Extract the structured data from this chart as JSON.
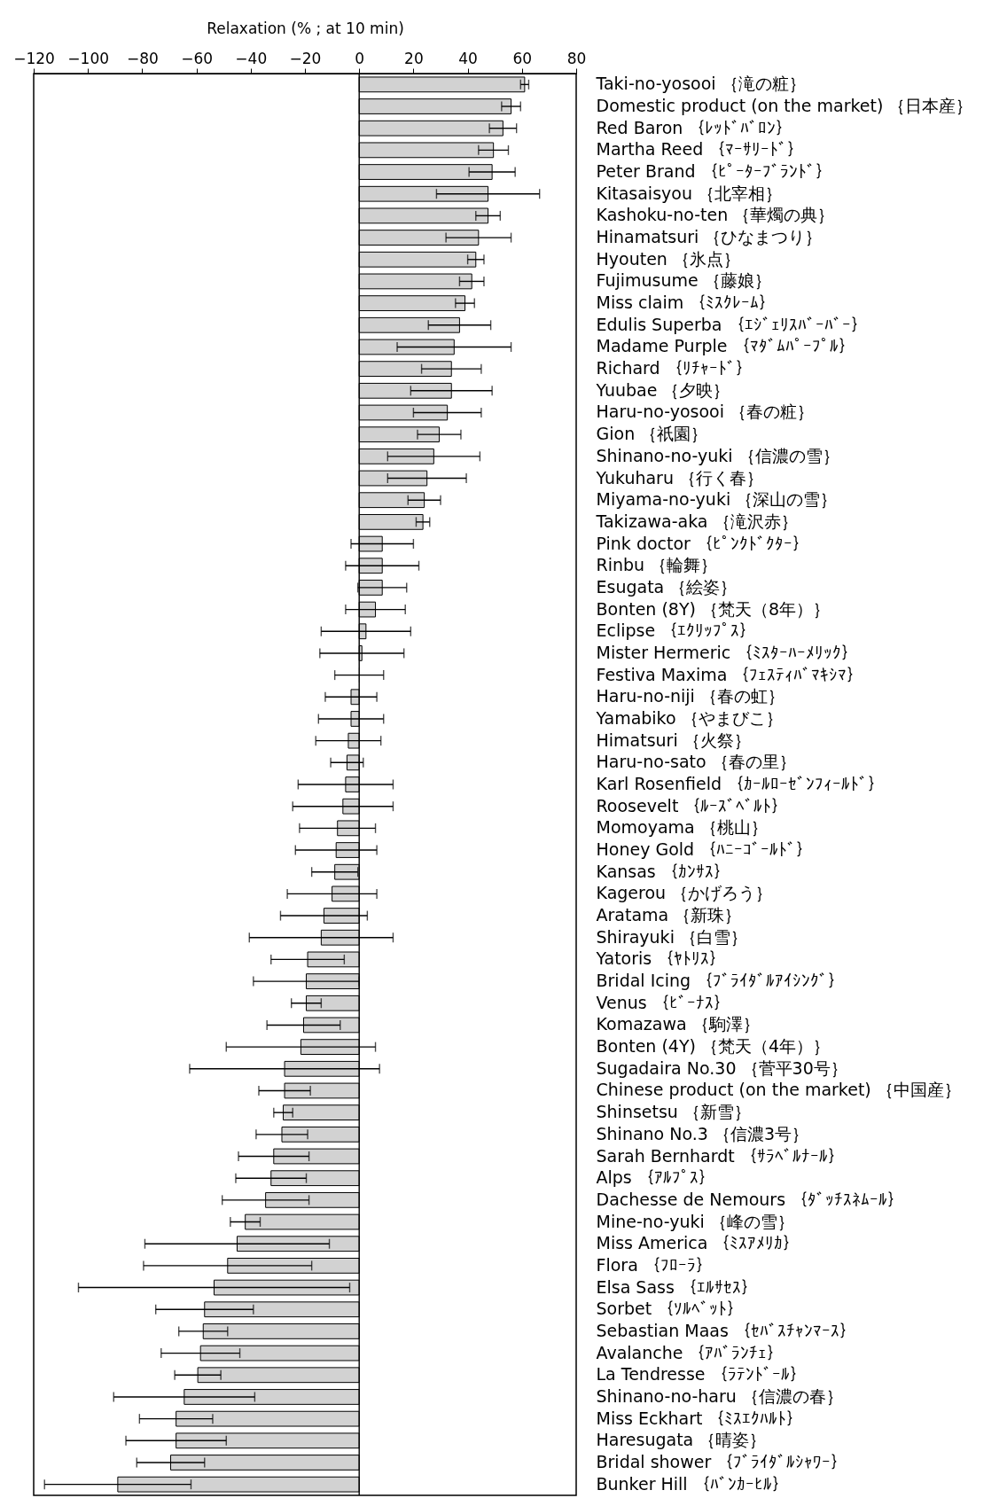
{
  "chart_data": {
    "type": "bar",
    "orientation": "horizontal",
    "xlabel": "Relaxation (% ; at 10 min)",
    "categories": [
      "Taki-no-yosooi ｛滝の粧｝",
      "Domestic product (on the market) ｛日本産｝",
      "Red Baron ｛ﾚｯﾄﾞﾊﾞﾛﾝ｝",
      "Martha Reed ｛ﾏｰｻﾘｰﾄﾞ｝",
      "Peter Brand ｛ﾋﾟｰﾀｰﾌﾞﾗﾝﾄﾞ｝",
      "Kitasaisyou ｛北宰相｝",
      "Kashoku-no-ten ｛華燭の典｝",
      "Hinamatsuri ｛ひなまつり｝",
      "Hyouten ｛氷点｝",
      "Fujimusume ｛藤娘｝",
      "Miss claim ｛ﾐｽｸﾚｰﾑ｝",
      "Edulis Superba ｛ｴｼﾞｪﾘｽﾊﾞｰﾊﾞｰ｝",
      "Madame Purple ｛ﾏﾀﾞﾑﾊﾟｰﾌﾟﾙ｝",
      "Richard ｛ﾘﾁｬｰﾄﾞ｝",
      "Yuubae ｛夕映｝",
      "Haru-no-yosooi ｛春の粧｝",
      "Gion ｛祇園｝",
      "Shinano-no-yuki ｛信濃の雪｝",
      "Yukuharu ｛行く春｝",
      "Miyama-no-yuki ｛深山の雪｝",
      "Takizawa-aka ｛滝沢赤｝",
      "Pink doctor ｛ﾋﾟﾝｸﾄﾞｸﾀｰ｝",
      "Rinbu ｛輪舞｝",
      "Esugata ｛絵姿｝",
      "Bonten (8Y) ｛梵天（8年）｝",
      "Eclipse ｛ｴｸﾘｯﾌﾟｽ｝",
      "Mister Hermeric ｛ﾐｽﾀｰﾊｰﾒﾘｯｸ｝",
      "Festiva Maxima ｛ﾌｪｽﾃｨﾊﾞﾏｷｼﾏ｝",
      "Haru-no-niji ｛春の虹｝",
      "Yamabiko ｛やまびこ｝",
      "Himatsuri ｛火祭｝",
      "Haru-no-sato ｛春の里｝",
      "Karl Rosenfield ｛ｶｰﾙﾛｰｾﾞﾝﾌｨｰﾙﾄﾞ｝",
      "Roosevelt ｛ﾙｰｽﾞﾍﾞﾙﾄ｝",
      "Momoyama ｛桃山｝",
      "Honey Gold ｛ﾊﾆｰｺﾞｰﾙﾄﾞ｝",
      "Kansas ｛ｶﾝｻｽ｝",
      "Kagerou ｛かげろう｝",
      "Aratama ｛新珠｝",
      "Shirayuki ｛白雪｝",
      "Yatoris ｛ﾔﾄﾘｽ｝",
      "Bridal Icing ｛ﾌﾞﾗｲﾀﾞﾙｱｲｼﾝｸﾞ｝",
      "Venus ｛ﾋﾞｰﾅｽ｝",
      "Komazawa ｛駒澤｝",
      "Bonten (4Y) ｛梵天（4年）｝",
      "Sugadaira No.30 ｛菅平30号｝",
      "Chinese product (on the market) ｛中国産｝",
      "Shinsetsu ｛新雪｝",
      "Shinano No.3 ｛信濃3号｝",
      "Sarah Bernhardt ｛ｻﾗﾍﾞﾙﾅｰﾙ｝",
      "Alps ｛ｱﾙﾌﾟｽ｝",
      "Dachesse de Nemours ｛ﾀﾞｯﾁｽﾈﾑｰﾙ｝",
      "Mine-no-yuki ｛峰の雪｝",
      "Miss America ｛ﾐｽｱﾒﾘｶ｝",
      "Flora ｛ﾌﾛｰﾗ｝",
      "Elsa Sass ｛ｴﾙｻｾｽ｝",
      "Sorbet ｛ｿﾙﾍﾞｯﾄ｝",
      "Sebastian Maas ｛ｾﾊﾞｽﾁｬﾝﾏｰｽ｝",
      "Avalanche ｛ｱﾊﾞﾗﾝﾁｪ｝",
      "La Tendresse ｛ﾗﾃﾝﾄﾞｰﾙ｝",
      "Shinano-no-haru ｛信濃の春｝",
      "Miss Eckhart ｛ﾐｽｴｸﾊﾙﾄ｝",
      "Haresugata ｛晴姿｝",
      "Bridal shower ｛ﾌﾞﾗｲﾀﾞﾙｼｬﾜｰ｝",
      "Bunker Hill ｛ﾊﾞﾝｶｰﾋﾙ｝"
    ],
    "values": [
      61,
      56,
      53,
      49.5,
      49,
      47.5,
      47.5,
      44,
      43,
      41.5,
      39,
      37,
      35,
      34,
      34,
      32.5,
      29.5,
      27.5,
      25,
      24,
      23.5,
      8.5,
      8.5,
      8.5,
      6,
      2.5,
      1,
      0,
      -3,
      -3,
      -4,
      -4.5,
      -5,
      -6,
      -8,
      -8.5,
      -9,
      -10,
      -13,
      -14,
      -19,
      -19.5,
      -19.5,
      -20.5,
      -21.5,
      -27.5,
      -27.5,
      -28,
      -28.5,
      -31.5,
      -32.5,
      -34.5,
      -42,
      -45,
      -48.5,
      -53.5,
      -57,
      -57.5,
      -58.5,
      -59.5,
      -64.5,
      -67.5,
      -67.5,
      -69.5,
      -89
    ],
    "errors": [
      1.5,
      3.5,
      5,
      5.5,
      8.5,
      19,
      4.5,
      12,
      3,
      4.5,
      3.5,
      11.5,
      21,
      11,
      15,
      12.5,
      8,
      17,
      14.5,
      6,
      2.5,
      11.5,
      13.5,
      9,
      11,
      16.5,
      15.5,
      9,
      9.5,
      12,
      12,
      6,
      17.5,
      18.5,
      14,
      15,
      8.5,
      16.5,
      16,
      26.5,
      13.5,
      19.5,
      5.5,
      13.5,
      27.5,
      35,
      9.5,
      3.5,
      9.5,
      13,
      13,
      16,
      5.5,
      34,
      31,
      50,
      18,
      9,
      14.5,
      8.5,
      26,
      13.5,
      18.5,
      12.5,
      27
    ],
    "color": "#d2d2d2",
    "xlim": [
      -120,
      80
    ],
    "xticks": [
      -120,
      -100,
      -80,
      -60,
      -40,
      -20,
      0,
      20,
      40,
      60,
      80
    ],
    "ref_lines": [
      {
        "axis": "x",
        "value": 0
      }
    ],
    "grid": false
  }
}
